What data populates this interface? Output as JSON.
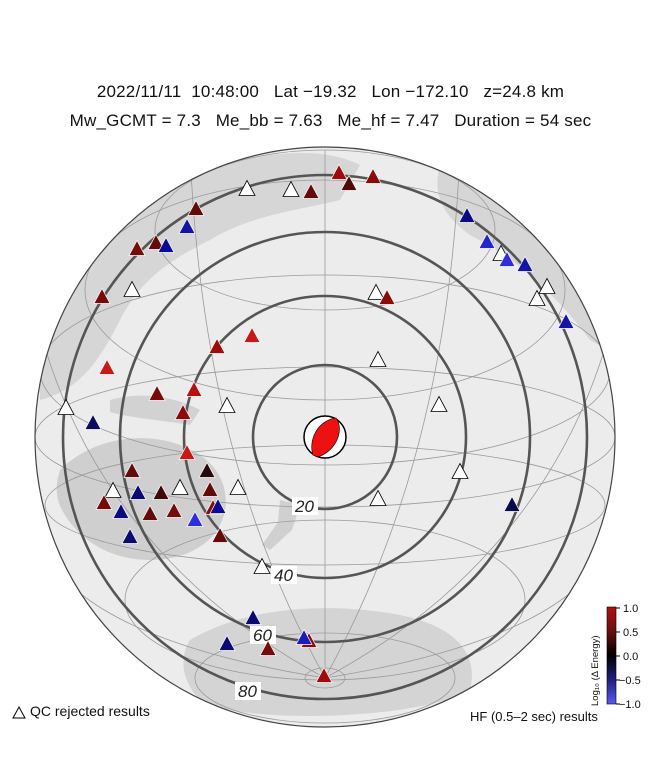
{
  "header": {
    "date": "2022/11/11",
    "time": "10:48:00",
    "lat": "Lat −19.32",
    "lon": "Lon −172.10",
    "depth": "z=24.8 km",
    "mw": "Mw_GCMT = 7.3",
    "me_bb": "Me_bb = 7.63",
    "me_hf": "Me_hf = 7.47",
    "duration": "Duration = 54 sec"
  },
  "distance_labels": [
    "20",
    "40",
    "60",
    "80"
  ],
  "colorbar": {
    "label": "Log₁₀ (Δ Energy)",
    "ticks": [
      "1.0",
      "0.5",
      "0.0",
      "−0.5",
      "−1.0"
    ],
    "high_color": "#b01010",
    "mid_color": "#000000",
    "low_color": "#3030d0"
  },
  "legend": {
    "qc_rejected": "QC rejected results",
    "hf_results": "HF (0.5–2 sec) results"
  },
  "stations": [
    {
      "v": 0.6
    },
    {
      "v": 0.3
    },
    {
      "v": 0.2
    },
    {
      "v": null
    },
    {
      "v": null
    },
    {
      "v": 0.5
    },
    {
      "v": -0.4
    },
    {
      "v": 0.3
    },
    {
      "v": 0.3
    },
    {
      "v": -0.6
    },
    {
      "v": -0.5
    },
    {
      "v": 0.4
    },
    {
      "v": null
    },
    {
      "v": -0.8
    },
    {
      "v": -0.9
    },
    {
      "v": -0.6
    },
    {
      "v": null
    },
    {
      "v": null
    },
    {
      "v": -0.6
    },
    {
      "v": null
    },
    {
      "v": 0.4
    },
    {
      "v": null
    },
    {
      "v": 0.5
    },
    {
      "v": 0.6
    },
    {
      "v": 0.8
    },
    {
      "v": null
    },
    {
      "v": 0.8
    },
    {
      "v": null
    },
    {
      "v": 0.4
    },
    {
      "v": -0.2
    },
    {
      "v": 0.5
    },
    {
      "v": 0.7
    },
    {
      "v": null
    },
    {
      "v": 0.8
    },
    {
      "v": 0.0
    },
    {
      "v": 0.3
    },
    {
      "v": null
    },
    {
      "v": 0.4
    },
    {
      "v": -0.3
    },
    {
      "v": -0.4
    },
    {
      "v": 0.3
    },
    {
      "v": 0.4
    },
    {
      "v": 0.3
    },
    {
      "v": -0.9
    },
    {
      "v": 0.5
    },
    {
      "v": 0.3
    },
    {
      "v": -0.3
    },
    {
      "v": null
    },
    {
      "v": null
    },
    {
      "v": 0.1
    },
    {
      "v": -0.3
    },
    {
      "v": -0.3
    },
    {
      "v": 0.4
    },
    {
      "v": -0.5
    },
    {
      "v": 0.5
    },
    {
      "v": -0.7
    },
    {
      "v": 0.6
    },
    {
      "v": null
    },
    {
      "v": null
    },
    {
      "v": null
    },
    {
      "v": null
    },
    {
      "v": -0.1
    }
  ]
}
